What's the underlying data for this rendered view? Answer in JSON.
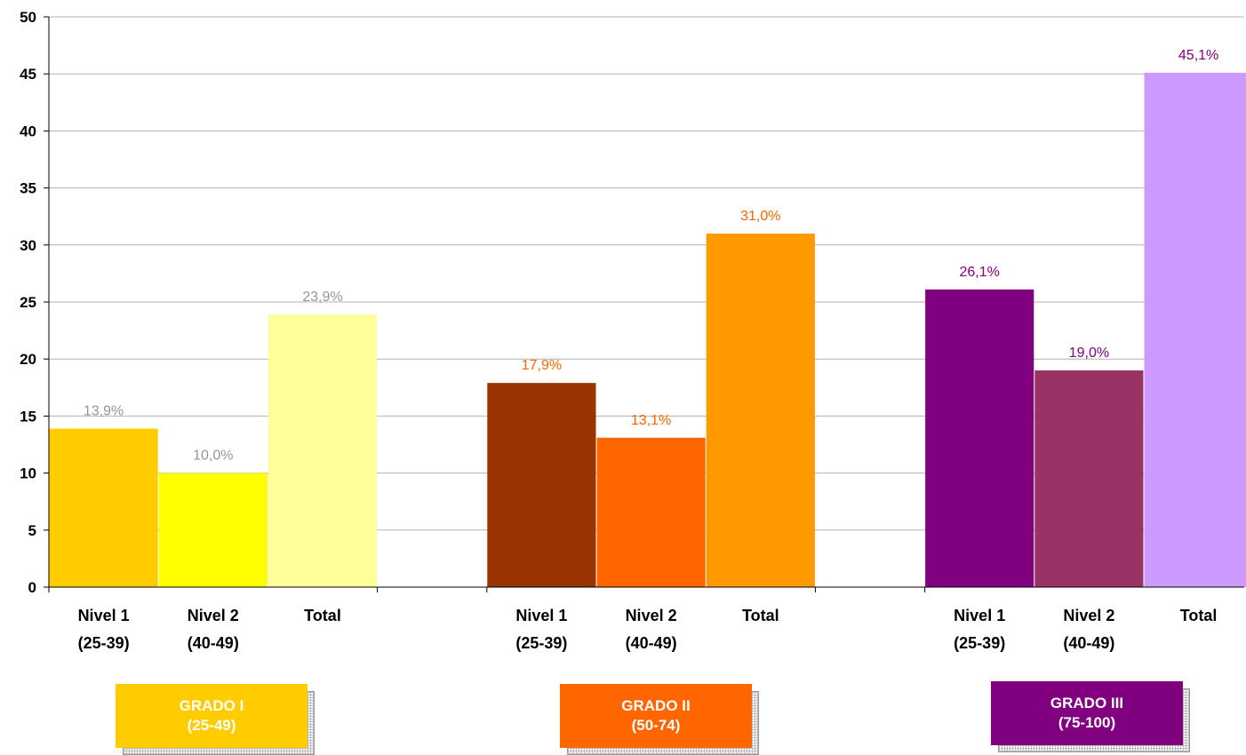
{
  "chart_data": {
    "type": "bar",
    "title": "",
    "xlabel": "",
    "ylabel": "",
    "ylim": [
      0,
      50
    ],
    "yticks": [
      0,
      5,
      10,
      15,
      20,
      25,
      30,
      35,
      40,
      45,
      50
    ],
    "grid": true,
    "legend": "bottom",
    "groups": [
      {
        "label": [
          "GRADO I",
          "(25-49)"
        ],
        "color": "#FFCC00",
        "bars": [
          {
            "label": [
              "Nivel 1",
              "(25-39)"
            ],
            "value": 13.9,
            "data_label": "13,9%",
            "color": "#FFCC00",
            "label_color": "#969696"
          },
          {
            "label": [
              "Nivel 2",
              "(40-49)"
            ],
            "value": 10.0,
            "data_label": "10,0%",
            "color": "#FFFF00",
            "label_color": "#969696"
          },
          {
            "label": [
              "Total"
            ],
            "value": 23.9,
            "data_label": "23,9%",
            "color": "#FFFF99",
            "label_color": "#969696"
          }
        ]
      },
      {
        "label": [
          "GRADO II",
          "(50-74)"
        ],
        "color": "#FF6600",
        "bars": [
          {
            "label": [
              "Nivel 1",
              "(25-39)"
            ],
            "value": 17.9,
            "data_label": "17,9%",
            "color": "#993300",
            "label_color": "#FF6600"
          },
          {
            "label": [
              "Nivel 2",
              "(40-49)"
            ],
            "value": 13.1,
            "data_label": "13,1%",
            "color": "#FF6600",
            "label_color": "#FF6600"
          },
          {
            "label": [
              "Total"
            ],
            "value": 31.0,
            "data_label": "31,0%",
            "color": "#FF9900",
            "label_color": "#FF6600"
          }
        ]
      },
      {
        "label": [
          "GRADO III",
          "(75-100)"
        ],
        "color": "#800080",
        "bars": [
          {
            "label": [
              "Nivel 1",
              "(25-39)"
            ],
            "value": 26.1,
            "data_label": "26,1%",
            "color": "#800080",
            "label_color": "#800080"
          },
          {
            "label": [
              "Nivel 2",
              "(40-49)"
            ],
            "value": 19.0,
            "data_label": "19,0%",
            "color": "#993366",
            "label_color": "#800080"
          },
          {
            "label": [
              "Total"
            ],
            "value": 45.1,
            "data_label": "45,1%",
            "color": "#CC99FF",
            "label_color": "#800080"
          }
        ]
      }
    ]
  }
}
